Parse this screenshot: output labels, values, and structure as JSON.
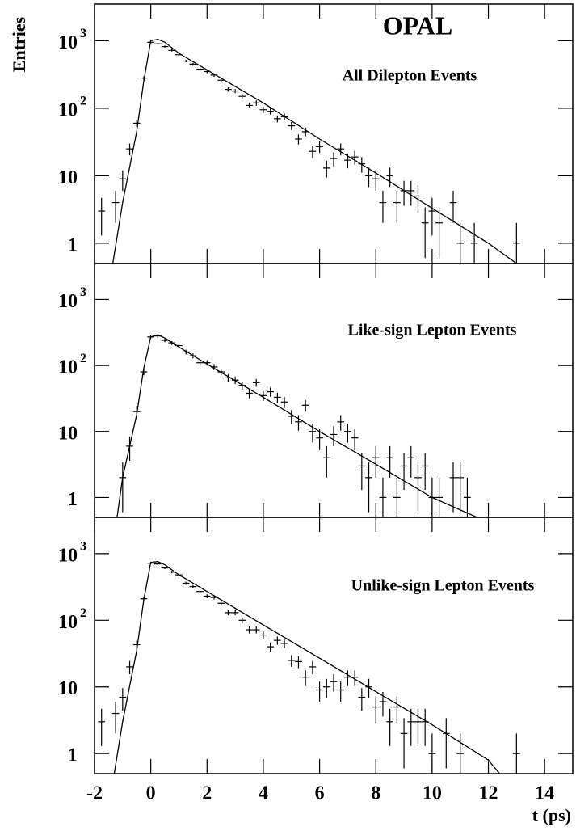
{
  "chart_data": [
    {
      "type": "errorbar",
      "title": "All Dilepton Events",
      "annotation": "OPAL",
      "ylabel": "Entries",
      "xlim": [
        -2,
        15
      ],
      "ylim": [
        0.5,
        3500
      ],
      "log_y": true,
      "yticks": [
        1,
        10,
        {
          "value": 100,
          "label": "10",
          "exponent": "2"
        },
        {
          "value": 1000,
          "label": "10",
          "exponent": "3"
        }
      ],
      "xticks": [
        -2,
        0,
        2,
        4,
        6,
        8,
        10,
        12,
        14
      ],
      "x": [
        -1.75,
        -1.25,
        -1,
        -0.75,
        -0.5,
        -0.25,
        0,
        0.25,
        0.5,
        0.75,
        1,
        1.25,
        1.5,
        1.75,
        2,
        2.25,
        2.5,
        2.75,
        3,
        3.25,
        3.5,
        3.75,
        4,
        4.25,
        4.5,
        4.75,
        5,
        5.25,
        5.5,
        5.75,
        6,
        6.25,
        6.5,
        6.75,
        7,
        7.25,
        7.5,
        7.75,
        8,
        8.25,
        8.5,
        8.75,
        9,
        9.25,
        9.5,
        9.75,
        10,
        10.25,
        10.75,
        11,
        11.5,
        13
      ],
      "values": [
        3,
        4,
        9,
        25,
        60,
        280,
        950,
        900,
        820,
        720,
        620,
        500,
        450,
        380,
        350,
        310,
        260,
        190,
        180,
        150,
        110,
        120,
        95,
        90,
        70,
        75,
        55,
        35,
        45,
        23,
        27,
        13,
        18,
        25,
        17,
        19,
        15,
        10,
        9,
        4,
        10,
        4,
        6,
        6,
        5,
        2,
        3,
        2,
        4,
        1,
        1,
        1
      ],
      "errors": [
        1.7,
        2,
        3,
        5,
        7.7,
        17,
        31,
        30,
        29,
        27,
        25,
        22,
        21,
        19,
        19,
        18,
        16,
        14,
        13,
        12,
        10,
        11,
        10,
        9.5,
        8.4,
        8.7,
        7.4,
        5.9,
        6.7,
        4.8,
        5.2,
        3.6,
        4.2,
        5,
        4.1,
        4.4,
        3.9,
        3.2,
        3,
        2,
        3.2,
        2,
        2.4,
        2.4,
        2.2,
        1.4,
        1.7,
        1.4,
        2,
        1,
        1,
        1
      ],
      "fit": {
        "x": [
          -1.35,
          -1,
          -0.5,
          -0.25,
          0,
          0.25,
          0.5,
          1,
          2,
          4,
          6,
          8,
          10,
          12,
          13
        ],
        "values": [
          0.5,
          4,
          45,
          250,
          1000,
          1050,
          950,
          650,
          370,
          120,
          35,
          11,
          3.3,
          1.0,
          0.5
        ]
      },
      "color": "#000000"
    },
    {
      "type": "errorbar",
      "title": "Like-sign Lepton Events",
      "xlim": [
        -2,
        15
      ],
      "ylim": [
        0.5,
        3500
      ],
      "log_y": true,
      "yticks": [
        1,
        10,
        {
          "value": 100,
          "label": "10",
          "exponent": "2"
        },
        {
          "value": 1000,
          "label": "10",
          "exponent": "3"
        }
      ],
      "xticks": [
        -2,
        0,
        2,
        4,
        6,
        8,
        10,
        12,
        14
      ],
      "x": [
        -1,
        -0.75,
        -0.5,
        -0.25,
        0,
        0.25,
        0.5,
        0.75,
        1,
        1.25,
        1.5,
        1.75,
        2,
        2.25,
        2.5,
        2.75,
        3,
        3.25,
        3.5,
        3.75,
        4,
        4.25,
        4.5,
        4.75,
        5,
        5.25,
        5.5,
        5.75,
        6,
        6.25,
        6.5,
        6.75,
        7,
        7.25,
        7.5,
        7.75,
        8,
        8.25,
        8.5,
        8.75,
        9,
        9.25,
        9.5,
        9.75,
        10,
        10.25,
        10.75,
        11,
        11.25
      ],
      "values": [
        2,
        6,
        20,
        80,
        270,
        280,
        240,
        220,
        200,
        160,
        140,
        110,
        110,
        95,
        80,
        65,
        60,
        50,
        38,
        55,
        35,
        40,
        33,
        28,
        17,
        14,
        25,
        10,
        8,
        4,
        9,
        14,
        10,
        8,
        3,
        2,
        4,
        1,
        4,
        1,
        3,
        4,
        2,
        3,
        1,
        1,
        2,
        2,
        1
      ],
      "errors": [
        1.4,
        2.4,
        4.5,
        9,
        16,
        17,
        15,
        15,
        14,
        13,
        12,
        10.5,
        10.5,
        9.7,
        9,
        8,
        7.7,
        7,
        6.2,
        7.4,
        5.9,
        6.3,
        5.7,
        5.3,
        4.1,
        3.7,
        5,
        3.2,
        2.8,
        2,
        3,
        3.7,
        3.2,
        2.8,
        1.7,
        1.4,
        2,
        1,
        2,
        1,
        1.7,
        2,
        1.4,
        1.7,
        1,
        1,
        1.4,
        1.4,
        1
      ],
      "fit": {
        "x": [
          -1.2,
          -1,
          -0.5,
          -0.25,
          0,
          0.25,
          0.5,
          1,
          2,
          4,
          6,
          8,
          10,
          11.6
        ],
        "values": [
          0.5,
          2,
          18,
          90,
          270,
          290,
          260,
          190,
          105,
          33,
          10,
          3.2,
          1.0,
          0.5
        ]
      },
      "color": "#000000"
    },
    {
      "type": "errorbar",
      "title": "Unlike-sign Lepton Events",
      "xlabel": "t (ps)",
      "xlim": [
        -2,
        15
      ],
      "ylim": [
        0.5,
        3500
      ],
      "log_y": true,
      "yticks": [
        1,
        10,
        {
          "value": 100,
          "label": "10",
          "exponent": "2"
        },
        {
          "value": 1000,
          "label": "10",
          "exponent": "3"
        }
      ],
      "xticks": [
        -2,
        0,
        2,
        4,
        6,
        8,
        10,
        12,
        14
      ],
      "x": [
        -1.75,
        -1.25,
        -1,
        -0.75,
        -0.5,
        -0.25,
        0,
        0.25,
        0.5,
        0.75,
        1,
        1.25,
        1.5,
        1.75,
        2,
        2.25,
        2.5,
        2.75,
        3,
        3.25,
        3.5,
        3.75,
        4,
        4.25,
        4.5,
        4.75,
        5,
        5.25,
        5.5,
        5.75,
        6,
        6.25,
        6.5,
        6.75,
        7,
        7.25,
        7.5,
        7.75,
        8,
        8.25,
        8.5,
        8.75,
        9,
        9.25,
        9.5,
        9.75,
        10,
        10.5,
        11,
        13
      ],
      "values": [
        3,
        4,
        7,
        20,
        43,
        210,
        720,
        700,
        610,
        530,
        480,
        360,
        320,
        270,
        230,
        220,
        180,
        130,
        130,
        100,
        72,
        72,
        60,
        40,
        50,
        45,
        25,
        24,
        14,
        20,
        9,
        10,
        12,
        9,
        14,
        14,
        7,
        10,
        5,
        6,
        3,
        5,
        2,
        3,
        3,
        3,
        1,
        2,
        1,
        1
      ],
      "errors": [
        1.7,
        2,
        2.6,
        4.5,
        6.6,
        14.5,
        27,
        26,
        25,
        23,
        22,
        19,
        18,
        16,
        15,
        15,
        13,
        11,
        11,
        10,
        8.5,
        8.5,
        7.7,
        6.3,
        7.1,
        6.7,
        5,
        4.9,
        3.7,
        4.5,
        3,
        3.2,
        3.5,
        3,
        3.7,
        3.7,
        2.6,
        3.2,
        2.2,
        2.4,
        1.7,
        2.2,
        1.4,
        1.7,
        1.7,
        1.7,
        1,
        1.4,
        1,
        1
      ],
      "fit": {
        "x": [
          -1.3,
          -1,
          -0.5,
          -0.25,
          0,
          0.25,
          0.5,
          1,
          2,
          4,
          6,
          8,
          10,
          12,
          12.4
        ],
        "values": [
          0.5,
          3,
          35,
          200,
          740,
          760,
          680,
          480,
          270,
          85,
          27,
          8.5,
          2.7,
          0.8,
          0.5
        ]
      },
      "color": "#000000"
    }
  ]
}
